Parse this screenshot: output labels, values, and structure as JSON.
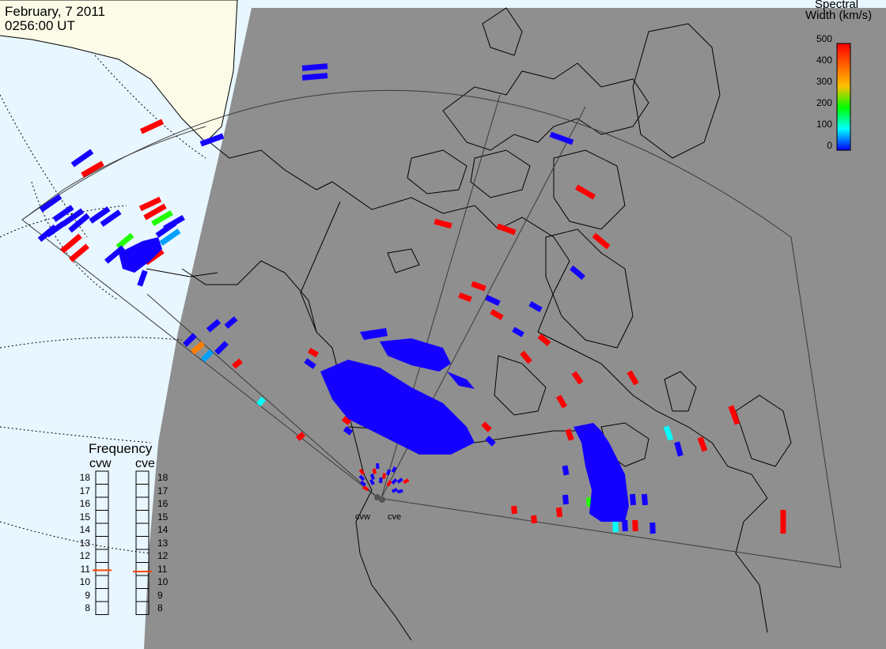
{
  "header": {
    "date": "February, 7 2011",
    "time": "0256:00 UT"
  },
  "colorbar": {
    "title_line1": "Spectral",
    "title_line2": "Width (km/s)",
    "ticks": [
      "500",
      "400",
      "300",
      "200",
      "100",
      "0"
    ],
    "min": 0,
    "max": 500,
    "colors": [
      "#ff0000",
      "#ff6000",
      "#ffc000",
      "#00ff00",
      "#00ffff",
      "#0000ff"
    ]
  },
  "frequency_panel": {
    "title": "Frequency",
    "radars": [
      {
        "name": "cvw",
        "frequency_mhz": 10.9
      },
      {
        "name": "cve",
        "frequency_mhz": 10.8
      }
    ],
    "scale": [
      "18",
      "17",
      "16",
      "15",
      "14",
      "13",
      "12",
      "11",
      "10",
      "9",
      "8"
    ],
    "marker_color": "#ff4400"
  },
  "radars": {
    "labels": [
      "cvw",
      "cve"
    ]
  },
  "colors": {
    "ocean": "#e8f6ff",
    "land_day": "#fbfbe8",
    "night": "#8f8f8f",
    "coast": "#000000"
  }
}
